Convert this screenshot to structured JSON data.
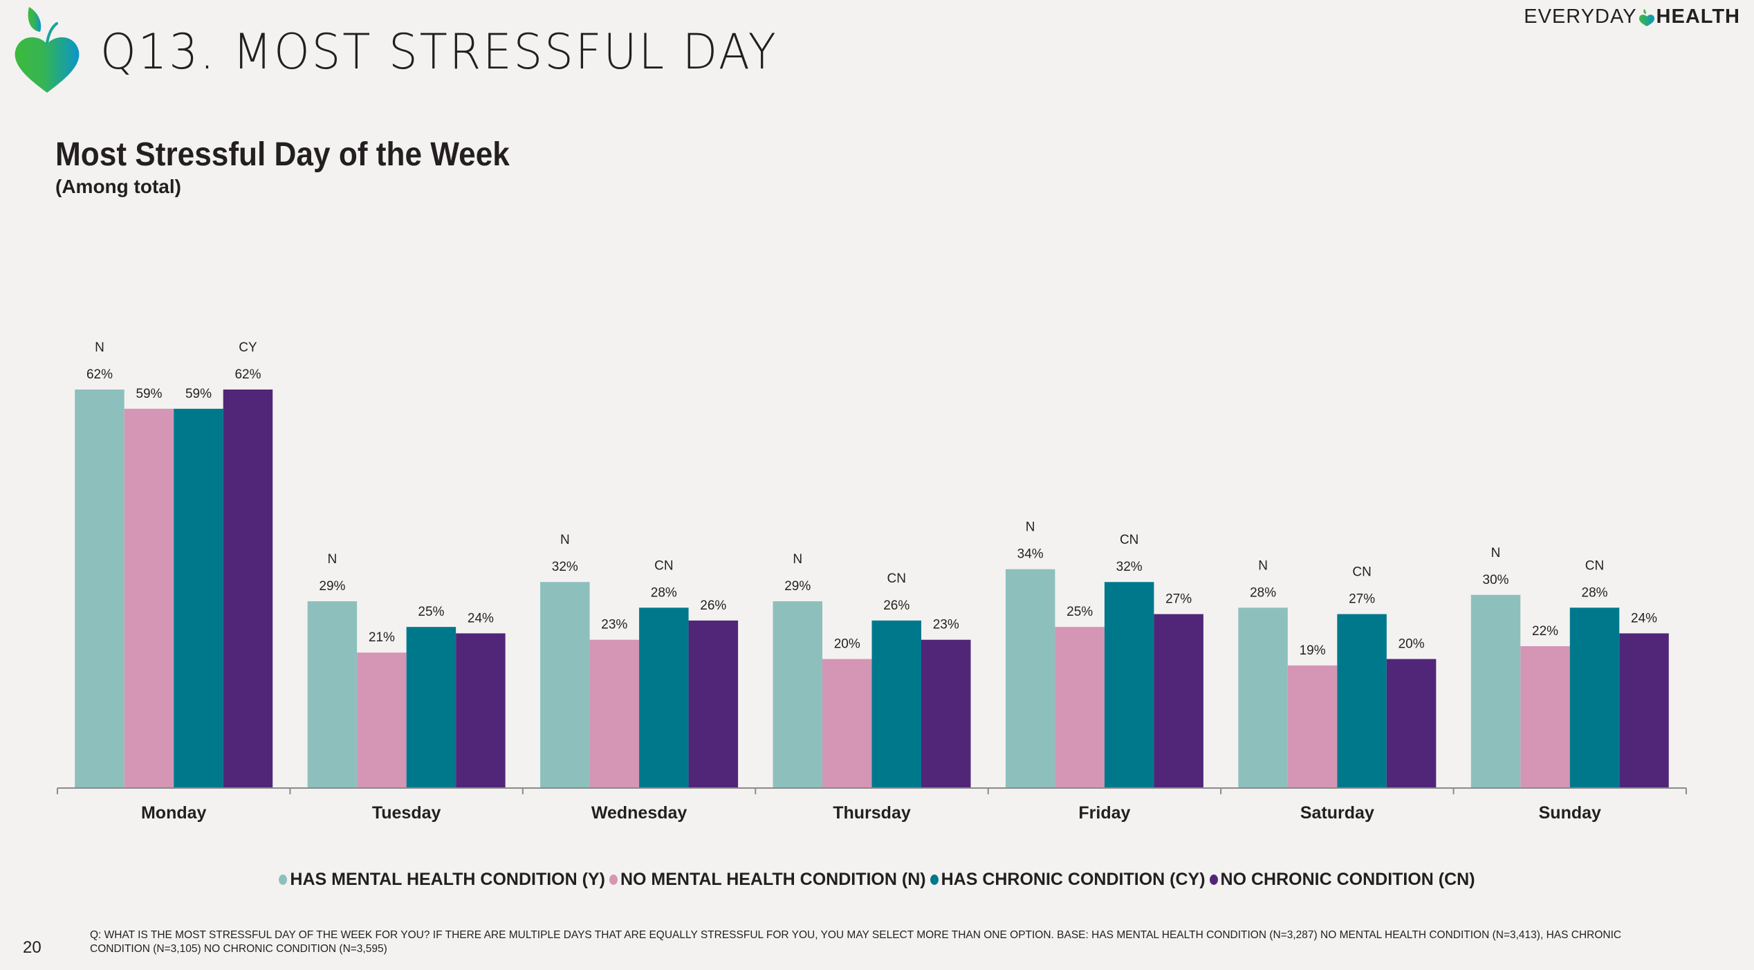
{
  "header": {
    "slide_title": "Q13. MOST STRESSFUL DAY",
    "brand_left": "EVERYDAY",
    "brand_right": "HEALTH",
    "logo_icon": "apple-heart-icon"
  },
  "chart_data": {
    "type": "bar",
    "title": "Most Stressful Day of the Week",
    "subtitle": "(Among total)",
    "xlabel": "",
    "ylabel": "",
    "ylim": [
      0,
      100
    ],
    "grid": false,
    "legend_position": "bottom",
    "value_suffix": "%",
    "categories": [
      "Monday",
      "Tuesday",
      "Wednesday",
      "Thursday",
      "Friday",
      "Saturday",
      "Sunday"
    ],
    "series": [
      {
        "name": "HAS MENTAL HEALTH CONDITION (Y)",
        "color": "#8dc0bd",
        "values": [
          62,
          29,
          32,
          29,
          34,
          28,
          30
        ],
        "sig_labels": [
          "N",
          "N",
          "N",
          "N",
          "N",
          "N",
          "N"
        ]
      },
      {
        "name": "NO MENTAL HEALTH CONDITION (N)",
        "color": "#d496b4",
        "values": [
          59,
          21,
          23,
          20,
          25,
          19,
          22
        ],
        "sig_labels": [
          "",
          "",
          "",
          "",
          "",
          "",
          ""
        ]
      },
      {
        "name": "HAS CHRONIC CONDITION (CY)",
        "color": "#00788c",
        "values": [
          59,
          25,
          28,
          26,
          32,
          27,
          28
        ],
        "sig_labels": [
          "",
          "",
          "CN",
          "CN",
          "CN",
          "CN",
          "CN"
        ]
      },
      {
        "name": "NO CHRONIC CONDITION (CN)",
        "color": "#512679",
        "values": [
          62,
          24,
          26,
          23,
          27,
          20,
          24
        ],
        "sig_labels": [
          "CY",
          "",
          "",
          "",
          "",
          "",
          ""
        ]
      }
    ]
  },
  "footer": {
    "page_number": "20",
    "footnote": "Q: WHAT IS THE MOST STRESSFUL DAY OF THE WEEK FOR YOU?  IF THERE ARE MULTIPLE DAYS THAT ARE EQUALLY STRESSFUL FOR YOU, YOU MAY SELECT MORE THAN ONE OPTION. BASE: HAS MENTAL HEALTH CONDITION (N=3,287) NO MENTAL HEALTH CONDITION (N=3,413), HAS CHRONIC CONDITION (N=3,105) NO CHRONIC CONDITION (N=3,595)"
  }
}
